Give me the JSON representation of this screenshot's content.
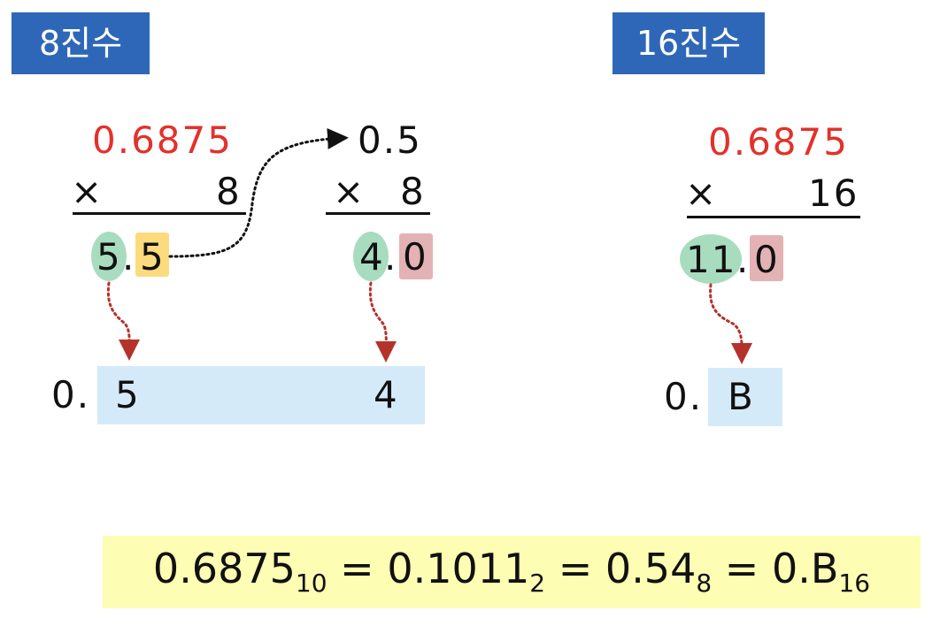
{
  "octal": {
    "title": "8진수",
    "step1": {
      "multiplicand": "0.6875",
      "times": "×",
      "multiplier": "8",
      "int_digit": "5",
      "dot": ".",
      "frac_digit": "5"
    },
    "step2": {
      "multiplicand": "0.5",
      "times": "×",
      "multiplier": "8",
      "int_digit": "4",
      "dot": ".",
      "frac_digit": "0"
    },
    "result": {
      "prefix": "0.",
      "digit1": "5",
      "digit2": "4"
    }
  },
  "hex": {
    "title": "16진수",
    "step1": {
      "multiplicand": "0.6875",
      "times": "×",
      "multiplier": "16",
      "int_digit": "11",
      "dot": ".",
      "frac_digit": "0"
    },
    "result": {
      "prefix": "0.",
      "digit1": "B"
    }
  },
  "formula": {
    "v10": "0.6875",
    "b10": "10",
    "eq1": " = ",
    "v2": "0.1011",
    "b2": "2",
    "eq2": " = ",
    "v8": "0.54",
    "b8": "8",
    "eq3": " = ",
    "v16": "0.B",
    "b16": "16"
  },
  "colors": {
    "title_bg": "#2f67b8",
    "red": "#e3312b",
    "green": "#a8dcbe",
    "yellow": "#fbdb7e",
    "pink": "#e3b2b4",
    "light_blue": "#d5eaf9",
    "formula_bg": "#fdfdb3",
    "arrow_red": "#b5322a"
  }
}
